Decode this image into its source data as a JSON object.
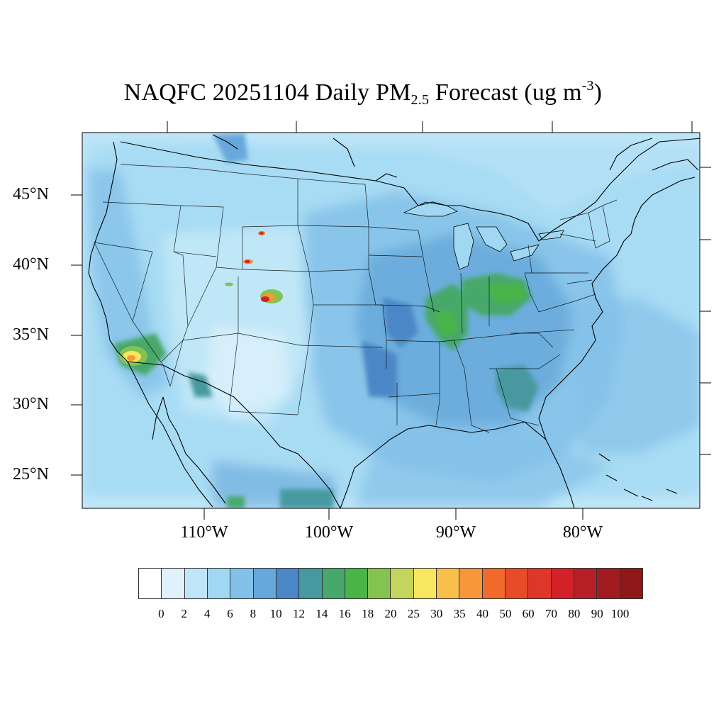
{
  "title": {
    "prefix": "NAQFC 20251104 Daily PM",
    "sub": "2.5",
    "middle": " Forecast (ug m",
    "sup": "-3",
    "suffix": ")"
  },
  "map": {
    "projection": "Lambert conformal, contiguous United States",
    "lat_labels": [
      "45°N",
      "40°N",
      "35°N",
      "30°N",
      "25°N"
    ],
    "lon_labels": [
      "110°W",
      "100°W",
      "90°W",
      "80°W"
    ],
    "base_color": "#bfe6f8",
    "land_color": "#a6d8f4",
    "hotspots": [
      {
        "name": "southern California",
        "level": 30
      },
      {
        "name": "central Colorado",
        "level": 70
      },
      {
        "name": "northern Colorado",
        "level": 70
      },
      {
        "name": "southern Wyoming",
        "level": 70
      },
      {
        "name": "Ohio Valley",
        "level": 18
      },
      {
        "name": "Mississippi Valley",
        "level": 18
      },
      {
        "name": "Georgia",
        "level": 14
      }
    ]
  },
  "colorbar": {
    "colors": [
      "#ffffff",
      "#dff2fc",
      "#bfe6f8",
      "#a0d8f3",
      "#84c1e8",
      "#67a7da",
      "#4b87c7",
      "#46999f",
      "#47a86b",
      "#4ab446",
      "#84c350",
      "#c3d55a",
      "#f6e660",
      "#f8bf4a",
      "#f79739",
      "#f2692c",
      "#e64c2a",
      "#de3627",
      "#d42027",
      "#b71f26",
      "#a01c20",
      "#8e1719"
    ],
    "labels": [
      "0",
      "2",
      "4",
      "6",
      "8",
      "10",
      "12",
      "14",
      "16",
      "18",
      "20",
      "25",
      "30",
      "35",
      "40",
      "50",
      "60",
      "70",
      "80",
      "90",
      "100"
    ]
  }
}
